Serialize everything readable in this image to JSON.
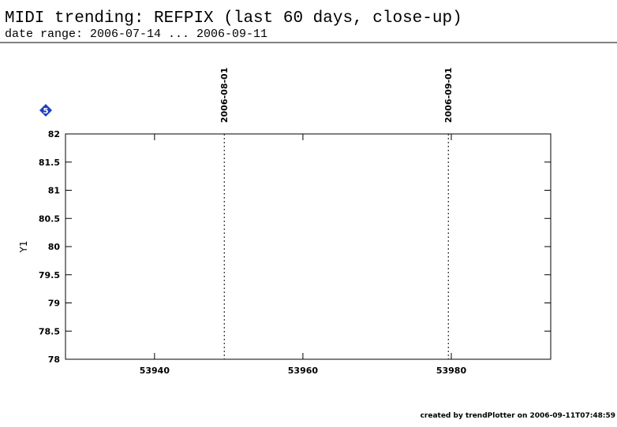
{
  "chart_data": {
    "type": "scatter",
    "title": "MIDI trending: REFPIX (last 60 days, close-up)",
    "subtitle": "date range: 2006-07-14 ... 2006-09-11",
    "ylabel": "Y1",
    "x": [],
    "y": [],
    "xlim": [
      53928,
      53993.4
    ],
    "xticks": [
      53940,
      53960,
      53980
    ],
    "ylim": [
      78,
      82
    ],
    "yticks": [
      78,
      78.5,
      79,
      79.5,
      80,
      80.5,
      81,
      81.5,
      82
    ],
    "vlines": [
      {
        "x": 53949.4,
        "label": "2006-08-01"
      },
      {
        "x": 53979.6,
        "label": "2006-09-01"
      }
    ],
    "legend": {
      "marker_label": "5",
      "color": "#1c3fc0"
    },
    "footer": "created by trendPlotter on 2006-09-11T07:48:59"
  }
}
